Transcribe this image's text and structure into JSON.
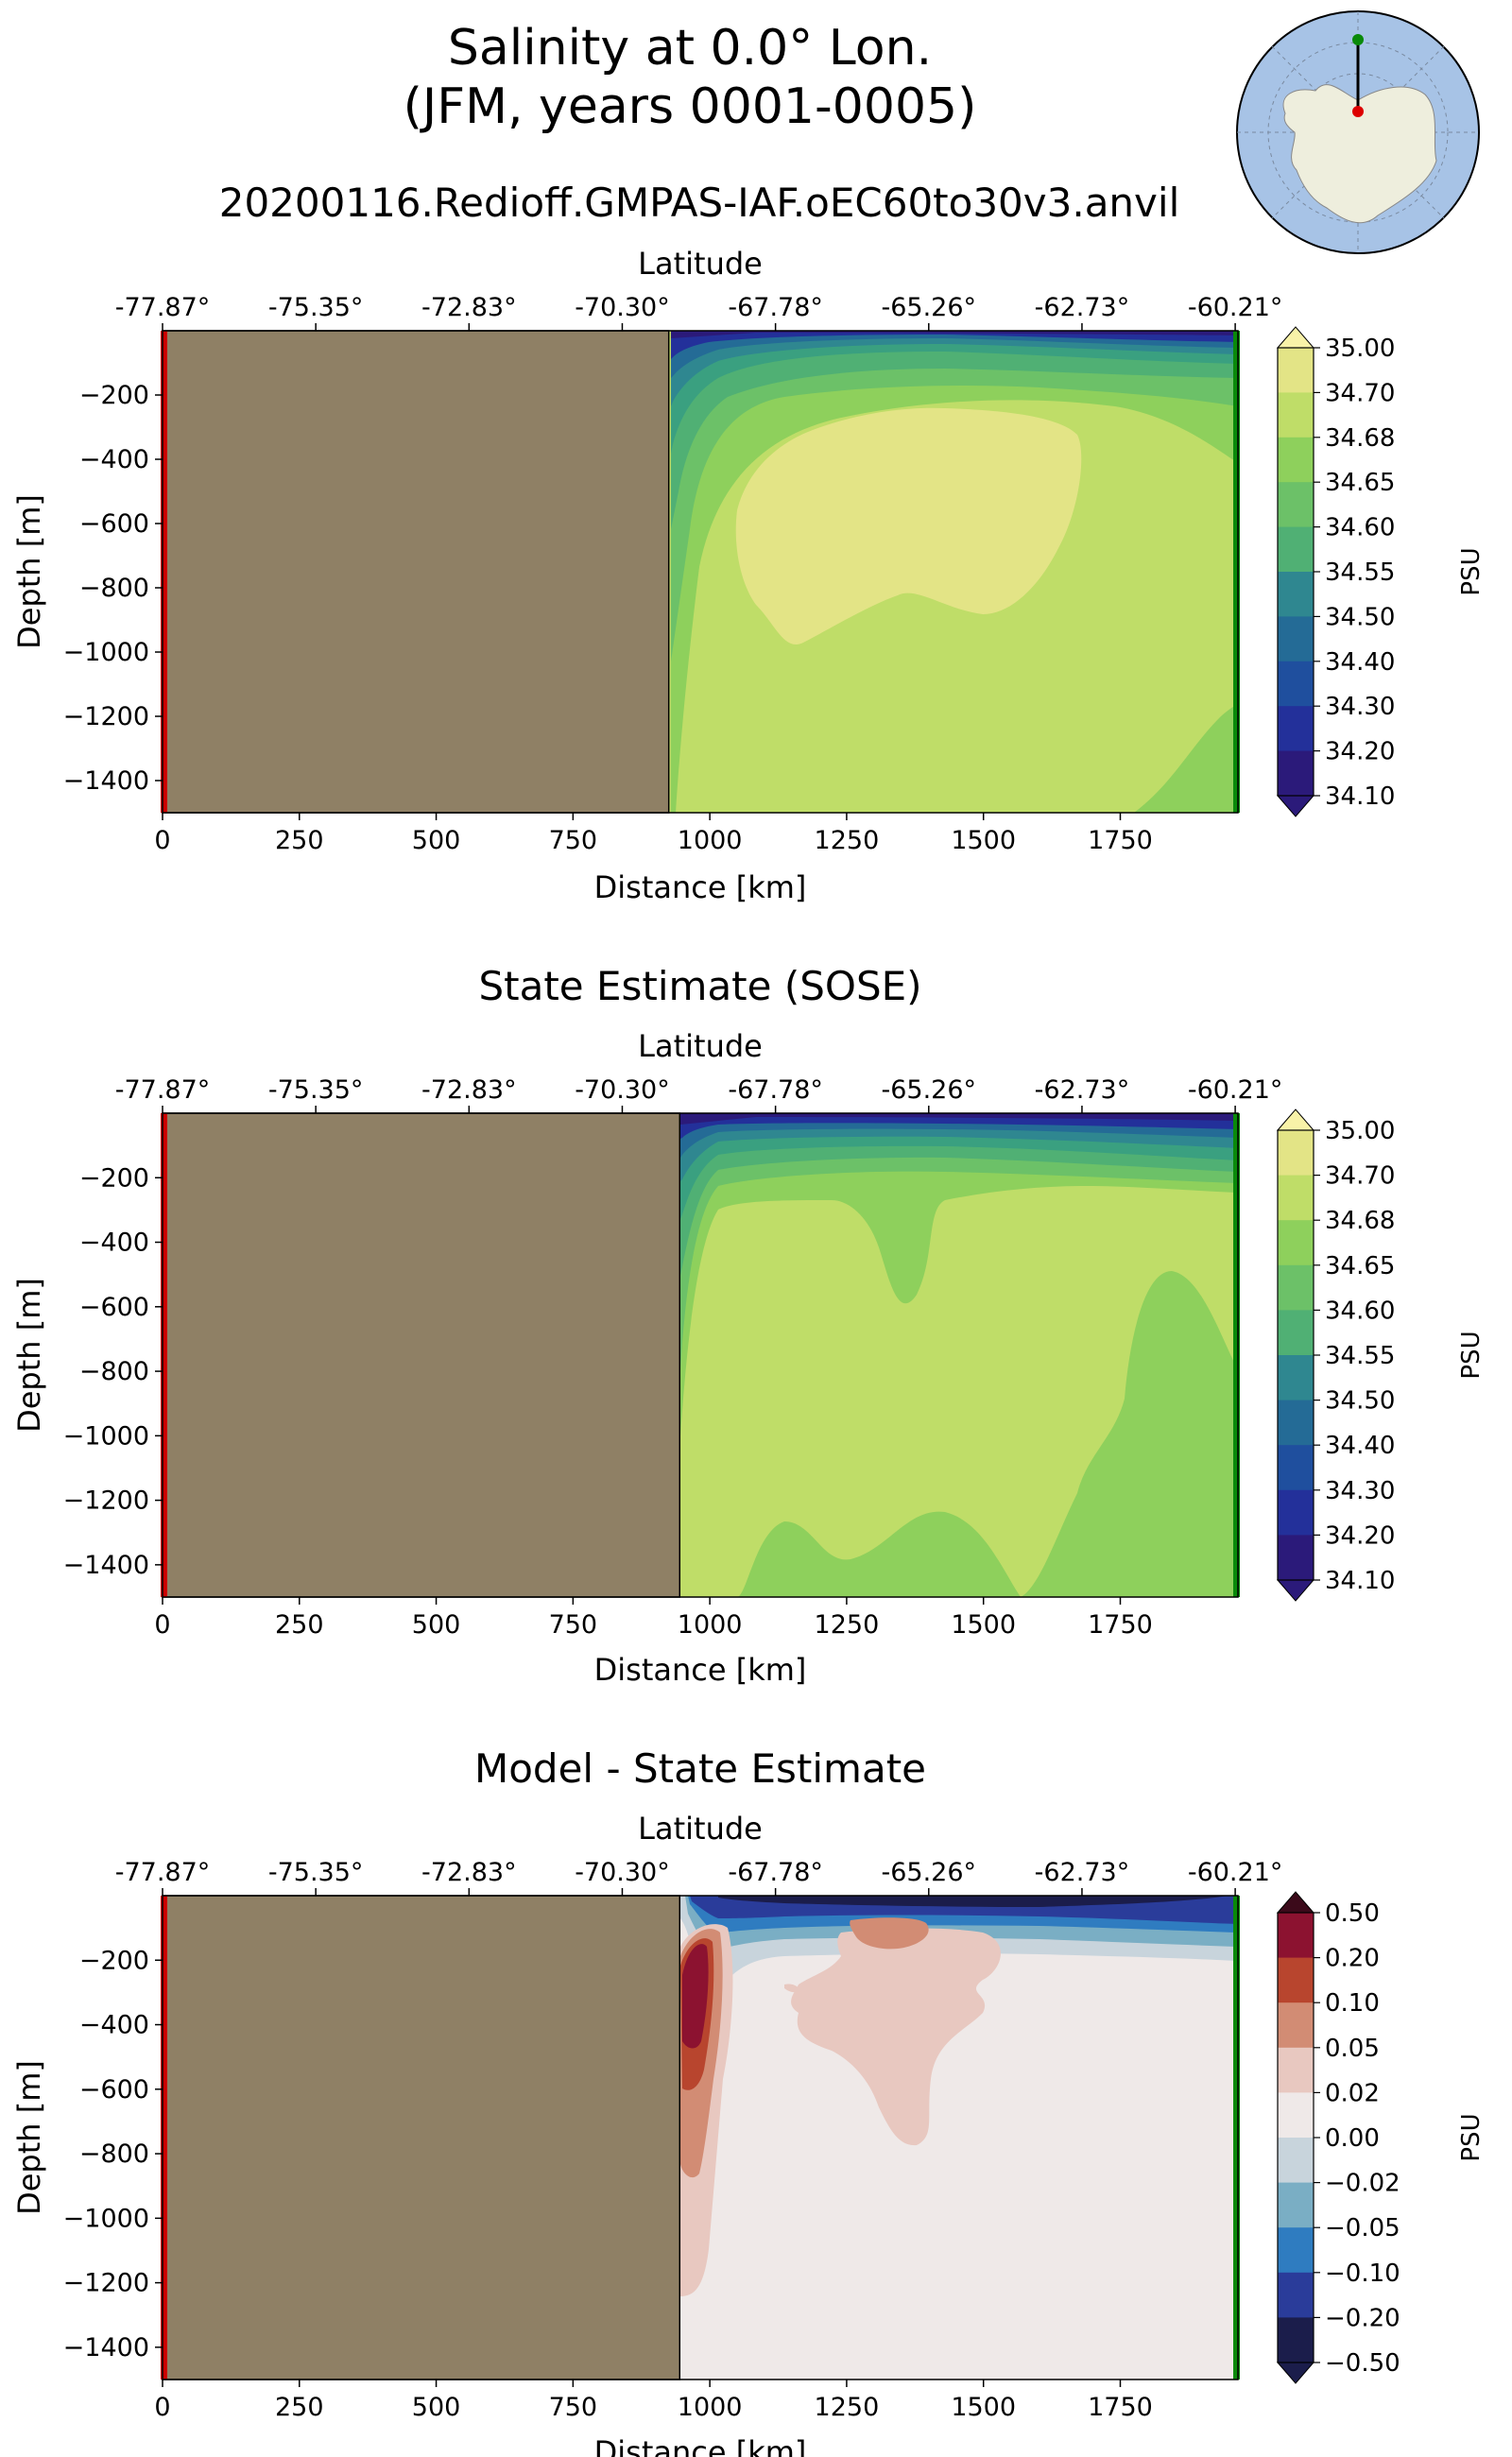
{
  "figure": {
    "title_line1": "Salinity at 0.0° Lon.",
    "title_line2": "(JFM, years 0001-0005)",
    "run_name": "20200116.Redioff.GMPAS-IAF.oEC60to30v3.anvil"
  },
  "colors": {
    "land": "#8f8065",
    "start_marker": "#cc0000",
    "end_marker": "#0a8a0a",
    "salinity_levels": [
      "#2b1a7a",
      "#23309a",
      "#1f4f9e",
      "#246b96",
      "#2f8790",
      "#3aa080",
      "#50b074",
      "#6cc168",
      "#8ed05c",
      "#bfdd68",
      "#e3e486",
      "#f8f2a8"
    ],
    "diff_levels": [
      "#1b1d4b",
      "#2a3c9a",
      "#2f7cc0",
      "#7aaec4",
      "#c8d4dc",
      "#efe9e8",
      "#e8c8c0",
      "#d28c74",
      "#b8452e",
      "#8c1230",
      "#3b0a1a"
    ]
  },
  "chart_data": [
    {
      "type": "heatmap",
      "name": "model",
      "title": "",
      "xlabel": "Distance [km]",
      "ylabel": "Depth [m]",
      "top_axis_label": "Latitude",
      "xlim": [
        0,
        1965
      ],
      "ylim": [
        -1500,
        0
      ],
      "x_ticks": [
        0,
        250,
        500,
        750,
        1000,
        1250,
        1500,
        1750
      ],
      "x_tick_labels": [
        "0",
        "250",
        "500",
        "750",
        "1000",
        "1250",
        "1500",
        "1750"
      ],
      "y_ticks": [
        -200,
        -400,
        -600,
        -800,
        -1000,
        -1200,
        -1400
      ],
      "y_tick_labels": [
        "−200",
        "−400",
        "−600",
        "−800",
        "−1000",
        "−1200",
        "−1400"
      ],
      "lat_ticks_km": [
        0,
        280,
        560,
        840,
        1120,
        1400,
        1680,
        1960
      ],
      "lat_tick_labels": [
        "-77.87°",
        "-75.35°",
        "-72.83°",
        "-70.30°",
        "-67.78°",
        "-65.26°",
        "-62.73°",
        "-60.21°"
      ],
      "land_extent_km": [
        0,
        925
      ],
      "colorbar": {
        "label": "PSU",
        "tick_labels": [
          "35.00",
          "34.70",
          "34.68",
          "34.65",
          "34.60",
          "34.55",
          "34.50",
          "34.40",
          "34.30",
          "34.20",
          "34.10"
        ]
      }
    },
    {
      "type": "heatmap",
      "name": "sose",
      "title": "State Estimate (SOSE)",
      "xlabel": "Distance [km]",
      "ylabel": "Depth [m]",
      "top_axis_label": "Latitude",
      "xlim": [
        0,
        1965
      ],
      "ylim": [
        -1500,
        0
      ],
      "x_ticks": [
        0,
        250,
        500,
        750,
        1000,
        1250,
        1500,
        1750
      ],
      "x_tick_labels": [
        "0",
        "250",
        "500",
        "750",
        "1000",
        "1250",
        "1500",
        "1750"
      ],
      "y_ticks": [
        -200,
        -400,
        -600,
        -800,
        -1000,
        -1200,
        -1400
      ],
      "y_tick_labels": [
        "−200",
        "−400",
        "−600",
        "−800",
        "−1000",
        "−1200",
        "−1400"
      ],
      "lat_ticks_km": [
        0,
        280,
        560,
        840,
        1120,
        1400,
        1680,
        1960
      ],
      "lat_tick_labels": [
        "-77.87°",
        "-75.35°",
        "-72.83°",
        "-70.30°",
        "-67.78°",
        "-65.26°",
        "-62.73°",
        "-60.21°"
      ],
      "land_extent_km": [
        0,
        945
      ],
      "colorbar": {
        "label": "PSU",
        "tick_labels": [
          "35.00",
          "34.70",
          "34.68",
          "34.65",
          "34.60",
          "34.55",
          "34.50",
          "34.40",
          "34.30",
          "34.20",
          "34.10"
        ]
      }
    },
    {
      "type": "heatmap",
      "name": "diff",
      "title": "Model - State Estimate",
      "xlabel": "Distance [km]",
      "ylabel": "Depth [m]",
      "top_axis_label": "Latitude",
      "xlim": [
        0,
        1965
      ],
      "ylim": [
        -1500,
        0
      ],
      "x_ticks": [
        0,
        250,
        500,
        750,
        1000,
        1250,
        1500,
        1750
      ],
      "x_tick_labels": [
        "0",
        "250",
        "500",
        "750",
        "1000",
        "1250",
        "1500",
        "1750"
      ],
      "y_ticks": [
        -200,
        -400,
        -600,
        -800,
        -1000,
        -1200,
        -1400
      ],
      "y_tick_labels": [
        "−200",
        "−400",
        "−600",
        "−800",
        "−1000",
        "−1200",
        "−1400"
      ],
      "lat_ticks_km": [
        0,
        280,
        560,
        840,
        1120,
        1400,
        1680,
        1960
      ],
      "lat_tick_labels": [
        "-77.87°",
        "-75.35°",
        "-72.83°",
        "-70.30°",
        "-67.78°",
        "-65.26°",
        "-62.73°",
        "-60.21°"
      ],
      "land_extent_km": [
        0,
        945
      ],
      "colorbar": {
        "label": "PSU",
        "tick_labels": [
          "0.50",
          "0.20",
          "0.10",
          "0.05",
          "0.02",
          "0.00",
          "−0.02",
          "−0.05",
          "−0.10",
          "−0.20",
          "−0.50"
        ]
      }
    }
  ]
}
